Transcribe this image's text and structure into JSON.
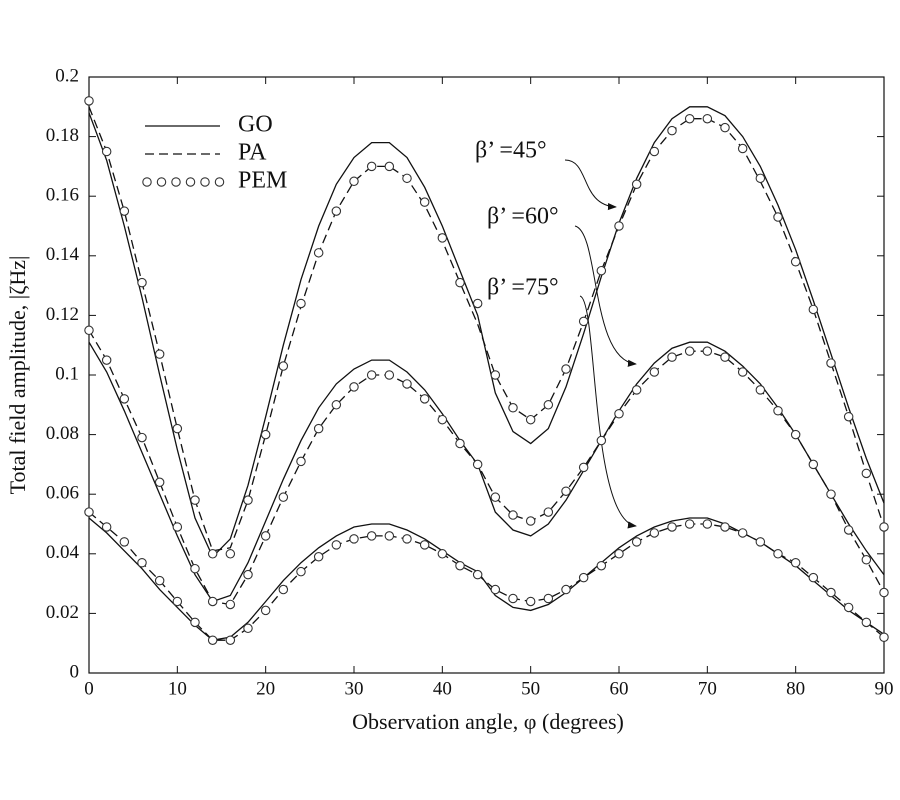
{
  "chart_data": {
    "type": "line",
    "xlabel": "Observation angle, φ  (degrees)",
    "ylabel": "Total field amplitude, |ζHz|",
    "x": [
      0,
      2,
      4,
      6,
      8,
      10,
      12,
      14,
      16,
      18,
      20,
      22,
      24,
      26,
      28,
      30,
      32,
      34,
      36,
      38,
      40,
      42,
      44,
      46,
      48,
      50,
      52,
      54,
      56,
      58,
      60,
      62,
      64,
      66,
      68,
      70,
      72,
      74,
      76,
      78,
      80,
      82,
      84,
      86,
      88,
      90
    ],
    "xlim": [
      0,
      90
    ],
    "xticks": [
      0,
      10,
      20,
      30,
      40,
      50,
      60,
      70,
      80,
      90
    ],
    "ylim": [
      0,
      0.2
    ],
    "yticks": [
      0,
      0.02,
      0.04,
      0.06,
      0.08,
      0.1,
      0.12,
      0.14,
      0.16,
      0.18,
      0.2
    ],
    "annotations": [
      "β’ =45°",
      "β’ =60°",
      "β’ =75°"
    ],
    "series": [
      {
        "name": "GO",
        "style": "solid",
        "color": "#111111",
        "curves": [
          [
            0.188,
            0.172,
            0.15,
            0.126,
            0.1,
            0.075,
            0.052,
            0.039,
            0.045,
            0.063,
            0.086,
            0.11,
            0.132,
            0.15,
            0.164,
            0.173,
            0.178,
            0.178,
            0.173,
            0.163,
            0.15,
            0.135,
            0.12,
            0.094,
            0.081,
            0.077,
            0.082,
            0.096,
            0.114,
            0.133,
            0.151,
            0.166,
            0.178,
            0.186,
            0.19,
            0.19,
            0.187,
            0.18,
            0.17,
            0.157,
            0.142,
            0.125,
            0.107,
            0.089,
            0.072,
            0.057
          ],
          [
            0.111,
            0.101,
            0.088,
            0.074,
            0.06,
            0.046,
            0.033,
            0.024,
            0.026,
            0.037,
            0.051,
            0.065,
            0.078,
            0.089,
            0.097,
            0.102,
            0.105,
            0.105,
            0.101,
            0.095,
            0.087,
            0.078,
            0.07,
            0.054,
            0.048,
            0.046,
            0.05,
            0.058,
            0.068,
            0.078,
            0.088,
            0.097,
            0.104,
            0.109,
            0.111,
            0.111,
            0.108,
            0.103,
            0.097,
            0.089,
            0.08,
            0.07,
            0.06,
            0.05,
            0.041,
            0.033
          ],
          [
            0.052,
            0.047,
            0.041,
            0.035,
            0.028,
            0.022,
            0.016,
            0.011,
            0.012,
            0.017,
            0.024,
            0.031,
            0.037,
            0.042,
            0.046,
            0.049,
            0.05,
            0.05,
            0.048,
            0.045,
            0.041,
            0.037,
            0.034,
            0.026,
            0.022,
            0.021,
            0.023,
            0.027,
            0.032,
            0.037,
            0.042,
            0.046,
            0.049,
            0.051,
            0.052,
            0.052,
            0.05,
            0.047,
            0.044,
            0.04,
            0.036,
            0.031,
            0.026,
            0.021,
            0.017,
            0.013
          ]
        ]
      },
      {
        "name": "PA",
        "style": "dashed",
        "color": "#111111",
        "curves": [
          [
            0.19,
            0.175,
            0.155,
            0.131,
            0.107,
            0.082,
            0.058,
            0.041,
            0.042,
            0.058,
            0.08,
            0.103,
            0.123,
            0.141,
            0.155,
            0.165,
            0.17,
            0.17,
            0.166,
            0.157,
            0.145,
            0.131,
            0.117,
            0.1,
            0.089,
            0.085,
            0.09,
            0.102,
            0.118,
            0.135,
            0.15,
            0.164,
            0.175,
            0.182,
            0.186,
            0.186,
            0.183,
            0.176,
            0.165,
            0.153,
            0.138,
            0.122,
            0.104,
            0.086,
            0.067,
            0.049
          ],
          [
            0.115,
            0.105,
            0.092,
            0.079,
            0.064,
            0.049,
            0.035,
            0.024,
            0.023,
            0.033,
            0.046,
            0.059,
            0.071,
            0.082,
            0.09,
            0.096,
            0.1,
            0.1,
            0.097,
            0.092,
            0.085,
            0.077,
            0.07,
            0.059,
            0.053,
            0.051,
            0.054,
            0.061,
            0.069,
            0.078,
            0.087,
            0.095,
            0.101,
            0.106,
            0.108,
            0.108,
            0.106,
            0.101,
            0.095,
            0.088,
            0.08,
            0.07,
            0.06,
            0.048,
            0.038,
            0.027
          ],
          [
            0.054,
            0.049,
            0.044,
            0.037,
            0.031,
            0.024,
            0.017,
            0.011,
            0.011,
            0.015,
            0.021,
            0.028,
            0.034,
            0.039,
            0.043,
            0.045,
            0.046,
            0.046,
            0.045,
            0.043,
            0.04,
            0.036,
            0.033,
            0.028,
            0.025,
            0.024,
            0.025,
            0.028,
            0.032,
            0.036,
            0.04,
            0.044,
            0.047,
            0.049,
            0.05,
            0.05,
            0.049,
            0.047,
            0.044,
            0.04,
            0.037,
            0.032,
            0.027,
            0.022,
            0.017,
            0.012
          ]
        ]
      },
      {
        "name": "PEM",
        "style": "circles",
        "color": "#333333",
        "curves": [
          [
            0.192,
            0.175,
            0.155,
            0.131,
            0.107,
            0.082,
            0.058,
            0.04,
            0.04,
            0.058,
            0.08,
            0.103,
            0.124,
            0.141,
            0.155,
            0.165,
            0.17,
            0.17,
            0.166,
            0.158,
            0.146,
            0.131,
            0.124,
            0.1,
            0.089,
            0.085,
            0.09,
            0.102,
            0.118,
            0.135,
            0.15,
            0.164,
            0.175,
            0.182,
            0.186,
            0.186,
            0.183,
            0.176,
            0.166,
            0.153,
            0.138,
            0.122,
            0.104,
            0.086,
            0.067,
            0.049
          ],
          [
            0.115,
            0.105,
            0.092,
            0.079,
            0.064,
            0.049,
            0.035,
            0.024,
            0.023,
            0.033,
            0.046,
            0.059,
            0.071,
            0.082,
            0.09,
            0.096,
            0.1,
            0.1,
            0.097,
            0.092,
            0.085,
            0.077,
            0.07,
            0.059,
            0.053,
            0.051,
            0.054,
            0.061,
            0.069,
            0.078,
            0.087,
            0.095,
            0.101,
            0.106,
            0.108,
            0.108,
            0.106,
            0.101,
            0.095,
            0.088,
            0.08,
            0.07,
            0.06,
            0.048,
            0.038,
            0.027
          ],
          [
            0.054,
            0.049,
            0.044,
            0.037,
            0.031,
            0.024,
            0.017,
            0.011,
            0.011,
            0.015,
            0.021,
            0.028,
            0.034,
            0.039,
            0.043,
            0.045,
            0.046,
            0.046,
            0.045,
            0.043,
            0.04,
            0.036,
            0.033,
            0.028,
            0.025,
            0.024,
            0.025,
            0.028,
            0.032,
            0.036,
            0.04,
            0.044,
            0.047,
            0.049,
            0.05,
            0.05,
            0.049,
            0.047,
            0.044,
            0.04,
            0.037,
            0.032,
            0.027,
            0.022,
            0.017,
            0.012
          ]
        ]
      }
    ]
  }
}
